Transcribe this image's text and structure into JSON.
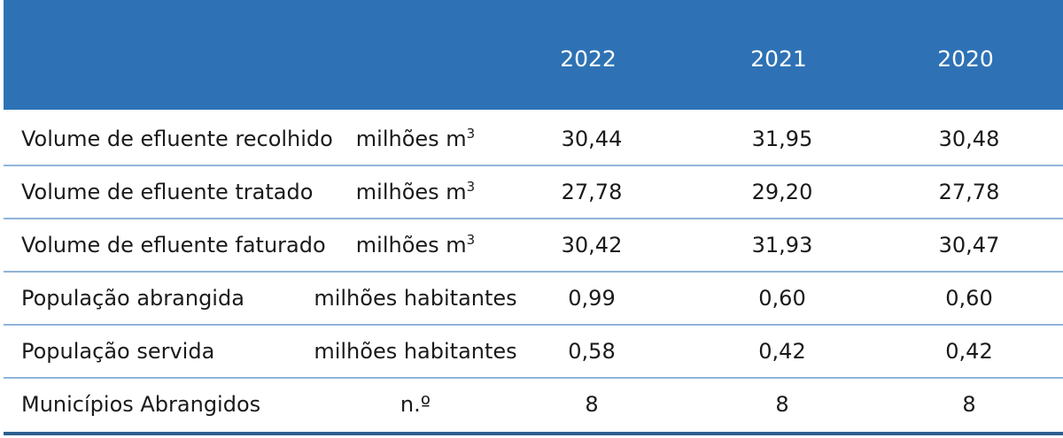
{
  "header": {
    "years": [
      "2022",
      "2021",
      "2020"
    ]
  },
  "rows": [
    {
      "label": "Volume de efluente recolhido",
      "unit": "milhões m",
      "unit_sup": "3",
      "values": [
        "30,44",
        "31,95",
        "30,48"
      ]
    },
    {
      "label": "Volume de efluente tratado",
      "unit": "milhões m",
      "unit_sup": "3",
      "values": [
        "27,78",
        "29,20",
        "27,78"
      ]
    },
    {
      "label": "Volume de efluente faturado",
      "unit": "milhões m",
      "unit_sup": "3",
      "values": [
        "30,42",
        "31,93",
        "30,47"
      ]
    },
    {
      "label": "População abrangida",
      "unit": "milhões habitantes",
      "unit_sup": "",
      "values": [
        "0,99",
        "0,60",
        "0,60"
      ]
    },
    {
      "label": "População servida",
      "unit": "milhões habitantes",
      "unit_sup": "",
      "values": [
        "0,58",
        "0,42",
        "0,42"
      ]
    },
    {
      "label": "Municípios Abrangidos",
      "unit": "n.º",
      "unit_sup": "",
      "values": [
        "8",
        "8",
        "8"
      ]
    }
  ],
  "colors": {
    "header_bg": "#2e72b5",
    "row_divider": "#8fb4d9",
    "bottom_rule": "#2e5f8e"
  }
}
